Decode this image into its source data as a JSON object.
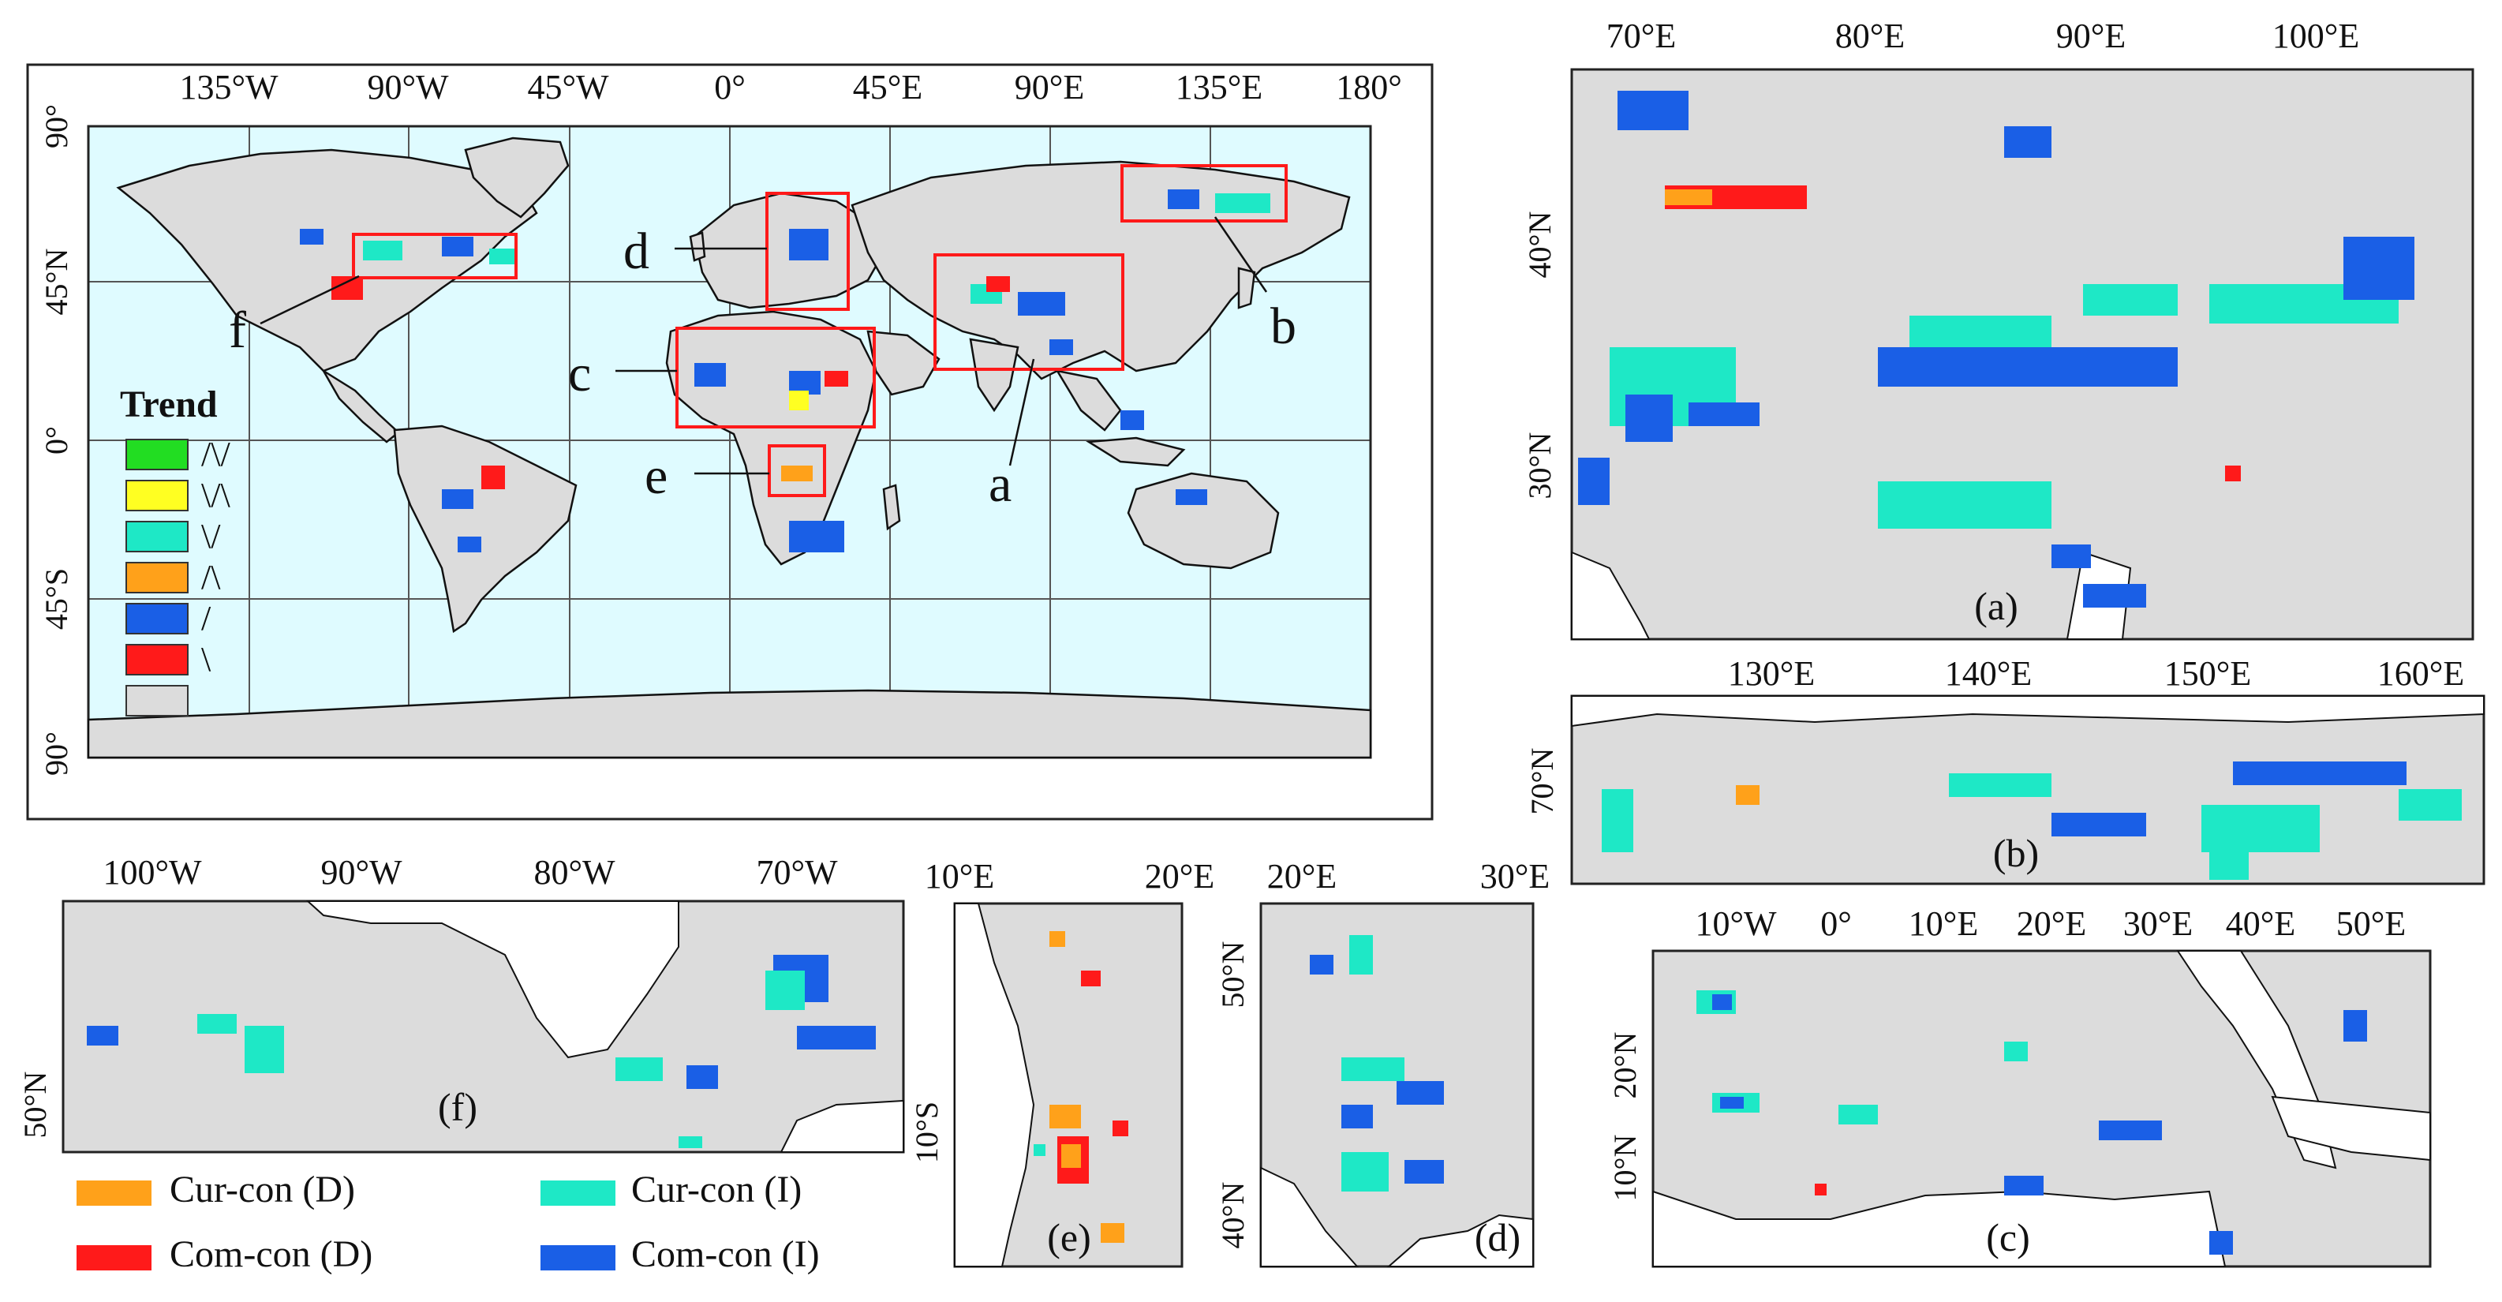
{
  "colors": {
    "ocean": "#dffbff",
    "land": "#dcdcdc",
    "cur_con_d": "#ffa11a",
    "com_con_d": "#ff1a1a",
    "cur_con_i": "#1ee8c6",
    "com_con_i": "#1a5fe6",
    "green": "#22dd22",
    "yellow": "#ffff22",
    "box": "#ff1a1a"
  },
  "world_map": {
    "top_ticks": [
      "135°W",
      "90°W",
      "45°W",
      "0°",
      "45°E",
      "90°E",
      "135°E",
      "180°"
    ],
    "left_ticks": [
      "90°",
      "45°N",
      "0°",
      "45°S",
      "90°"
    ],
    "region_labels": [
      "a",
      "b",
      "c",
      "d",
      "e",
      "f"
    ],
    "legend": {
      "title": "Trend",
      "items": [
        {
          "symbol": "/\\/",
          "color": "#22dd22"
        },
        {
          "symbol": "\\/\\",
          "color": "#ffff22"
        },
        {
          "symbol": "\\/",
          "color": "#1ee8c6"
        },
        {
          "symbol": "/\\",
          "color": "#ffa11a"
        },
        {
          "symbol": "/",
          "color": "#1a5fe6"
        },
        {
          "symbol": "\\",
          "color": "#ff1a1a"
        },
        {
          "symbol": "",
          "color": "#dcdcdc"
        }
      ]
    }
  },
  "panel_a": {
    "label": "(a)",
    "top_ticks": [
      "70°E",
      "80°E",
      "90°E",
      "100°E"
    ],
    "left_ticks": [
      "40°N",
      "30°N"
    ]
  },
  "panel_b": {
    "label": "(b)",
    "top_ticks": [
      "130°E",
      "140°E",
      "150°E",
      "160°E"
    ],
    "left_ticks": [
      "70°N"
    ]
  },
  "panel_c": {
    "label": "(c)",
    "top_ticks": [
      "10°W",
      "0°",
      "10°E",
      "20°E",
      "30°E",
      "40°E",
      "50°E"
    ],
    "left_ticks": [
      "20°N",
      "10°N"
    ]
  },
  "panel_d": {
    "label": "(d)",
    "top_ticks": [
      "20°E",
      "30°E"
    ],
    "left_ticks": [
      "50°N",
      "40°N"
    ]
  },
  "panel_e": {
    "label": "(e)",
    "top_ticks": [
      "10°E",
      "20°E"
    ],
    "left_ticks": [
      "10°S"
    ]
  },
  "panel_f": {
    "label": "(f)",
    "top_ticks": [
      "100°W",
      "90°W",
      "80°W",
      "70°W"
    ],
    "left_ticks": [
      "50°N"
    ]
  },
  "bottom_legend": [
    {
      "label": "Cur-con (D)",
      "color": "#ffa11a"
    },
    {
      "label": "Com-con (D)",
      "color": "#ff1a1a"
    },
    {
      "label": "Cur-con (I)",
      "color": "#1ee8c6"
    },
    {
      "label": "Com-con (I)",
      "color": "#1a5fe6"
    }
  ]
}
